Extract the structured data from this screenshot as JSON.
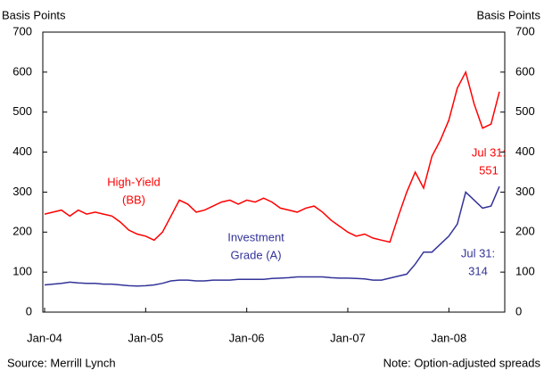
{
  "chart_data": {
    "type": "line",
    "ylabel": "Basis Points",
    "y2label": "Basis Points",
    "categories": [
      "Jan-04",
      null,
      null,
      null,
      null,
      null,
      null,
      null,
      null,
      null,
      null,
      null,
      "Jan-05",
      null,
      null,
      null,
      null,
      null,
      null,
      null,
      null,
      null,
      null,
      null,
      "Jan-06",
      null,
      null,
      null,
      null,
      null,
      null,
      null,
      null,
      null,
      null,
      null,
      "Jan-07",
      null,
      null,
      null,
      null,
      null,
      null,
      null,
      null,
      null,
      null,
      null,
      "Jan-08",
      null,
      null,
      null,
      null,
      null,
      null
    ],
    "series": [
      {
        "label": [
          "High-Yield",
          "(BB)"
        ],
        "color": "#ff0000",
        "end_label": [
          "Jul 31:",
          "551"
        ],
        "values": [
          245,
          250,
          255,
          240,
          255,
          245,
          250,
          245,
          240,
          225,
          205,
          195,
          190,
          180,
          200,
          240,
          280,
          270,
          250,
          255,
          265,
          275,
          280,
          270,
          280,
          275,
          285,
          275,
          260,
          255,
          250,
          260,
          265,
          250,
          230,
          215,
          200,
          190,
          195,
          185,
          180,
          175,
          240,
          300,
          350,
          310,
          390,
          430,
          480,
          560,
          600,
          520,
          460,
          470,
          551
        ]
      },
      {
        "label": [
          "Investment",
          "Grade (A)"
        ],
        "color": "#333399",
        "end_label": [
          "Jul 31:",
          "314"
        ],
        "values": [
          68,
          70,
          72,
          75,
          73,
          72,
          72,
          70,
          70,
          68,
          66,
          65,
          66,
          68,
          72,
          78,
          80,
          80,
          78,
          78,
          80,
          80,
          80,
          82,
          82,
          82,
          82,
          84,
          85,
          86,
          88,
          88,
          88,
          88,
          86,
          85,
          85,
          84,
          83,
          80,
          80,
          85,
          90,
          95,
          120,
          150,
          150,
          170,
          190,
          220,
          300,
          280,
          260,
          265,
          314
        ]
      }
    ],
    "ylim": [
      0,
      700
    ],
    "yticks": [
      0,
      100,
      200,
      300,
      400,
      500,
      600,
      700
    ],
    "y2lim": [
      0,
      700
    ],
    "y2ticks": [
      0,
      100,
      200,
      300,
      400,
      500,
      600,
      700
    ],
    "source": "Source: Merrill Lynch",
    "note": "Note: Option-adjusted spreads"
  }
}
